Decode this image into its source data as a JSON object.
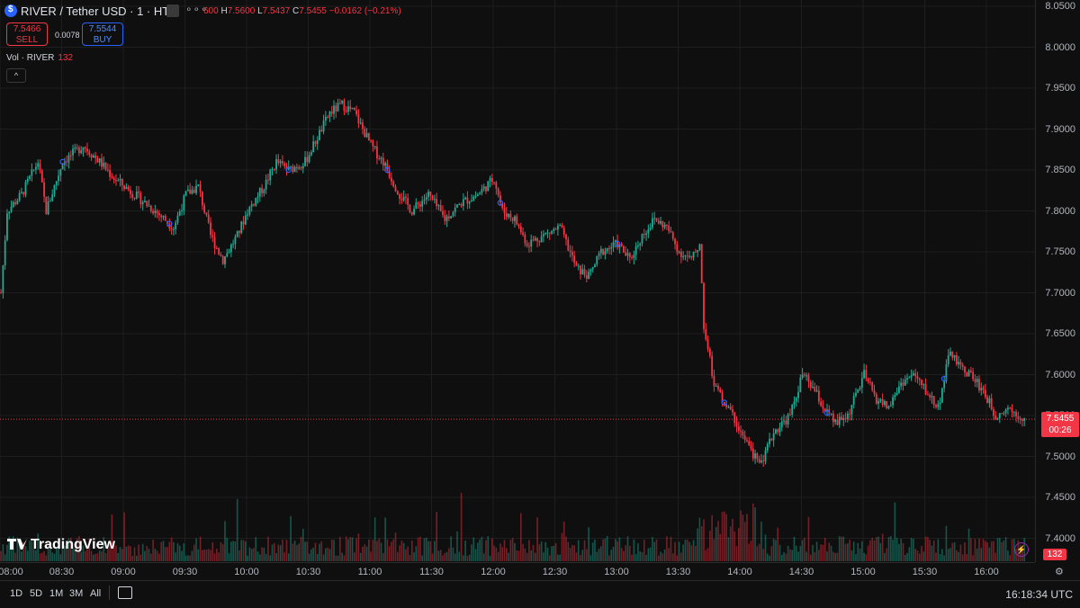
{
  "header": {
    "title": "RIVER / Tether USD · 1 · HTX",
    "more": "∘∘∘",
    "ohlc_open": "600",
    "h_label": "H",
    "h_value": "7.5600",
    "l_label": "L",
    "l_value": "7.5437",
    "c_label": "C",
    "c_value": "7.5455",
    "change": "−0.0162 (−0.21%)"
  },
  "trade": {
    "sell_price": "7.5466",
    "sell_label": "SELL",
    "spread": "0.0078",
    "buy_price": "7.5544",
    "buy_label": "BUY"
  },
  "volume_indicator": {
    "label": "Vol · RIVER",
    "value": "132"
  },
  "collapse": "^",
  "price_axis": [
    "8.0500",
    "8.0000",
    "7.9500",
    "7.9000",
    "7.8500",
    "7.8000",
    "7.7500",
    "7.7000",
    "7.6500",
    "7.6000",
    "7.5500",
    "7.5000",
    "7.4500",
    "7.4000"
  ],
  "time_axis": [
    "08:00",
    "08:30",
    "09:00",
    "09:30",
    "10:00",
    "10:30",
    "11:00",
    "11:30",
    "12:00",
    "12:30",
    "13:00",
    "13:30",
    "14:00",
    "14:30",
    "15:00",
    "15:30",
    "16:00"
  ],
  "last_price": {
    "price": "7.5455",
    "countdown": "00:26"
  },
  "volume_tag": "132",
  "logo": "TradingView",
  "bottom_bar": {
    "ranges": [
      "1D",
      "5D",
      "1M",
      "3M",
      "All"
    ],
    "clock": "16:18:34 UTC"
  },
  "colors": {
    "up": "#22ab94",
    "down": "#f23645",
    "background": "#0f0f0f",
    "grid": "#1e1e1e"
  },
  "chart_data": {
    "type": "candlestick",
    "x_range": [
      "08:00",
      "16:18"
    ],
    "ylim": [
      7.37,
      8.055
    ],
    "anchors": [
      [
        "08:00",
        7.7
      ],
      [
        "08:03",
        7.8
      ],
      [
        "08:10",
        7.82
      ],
      [
        "08:18",
        7.86
      ],
      [
        "08:22",
        7.8
      ],
      [
        "08:30",
        7.86
      ],
      [
        "08:40",
        7.88
      ],
      [
        "08:48",
        7.86
      ],
      [
        "08:55",
        7.84
      ],
      [
        "09:05",
        7.82
      ],
      [
        "09:15",
        7.8
      ],
      [
        "09:24",
        7.78
      ],
      [
        "09:30",
        7.82
      ],
      [
        "09:36",
        7.83
      ],
      [
        "09:42",
        7.77
      ],
      [
        "09:48",
        7.74
      ],
      [
        "09:55",
        7.77
      ],
      [
        "10:00",
        7.8
      ],
      [
        "10:08",
        7.83
      ],
      [
        "10:14",
        7.86
      ],
      [
        "10:20",
        7.85
      ],
      [
        "10:28",
        7.86
      ],
      [
        "10:34",
        7.89
      ],
      [
        "10:40",
        7.92
      ],
      [
        "10:46",
        7.93
      ],
      [
        "10:52",
        7.92
      ],
      [
        "11:00",
        7.88
      ],
      [
        "11:06",
        7.86
      ],
      [
        "11:14",
        7.82
      ],
      [
        "11:20",
        7.8
      ],
      [
        "11:28",
        7.82
      ],
      [
        "11:36",
        7.79
      ],
      [
        "11:44",
        7.81
      ],
      [
        "11:52",
        7.82
      ],
      [
        "12:00",
        7.84
      ],
      [
        "12:04",
        7.8
      ],
      [
        "12:10",
        7.79
      ],
      [
        "12:16",
        7.76
      ],
      [
        "12:24",
        7.77
      ],
      [
        "12:32",
        7.78
      ],
      [
        "12:40",
        7.73
      ],
      [
        "12:46",
        7.72
      ],
      [
        "12:52",
        7.75
      ],
      [
        "13:00",
        7.76
      ],
      [
        "13:06",
        7.74
      ],
      [
        "13:12",
        7.77
      ],
      [
        "13:18",
        7.79
      ],
      [
        "13:24",
        7.78
      ],
      [
        "13:30",
        7.75
      ],
      [
        "13:36",
        7.74
      ],
      [
        "13:40",
        7.76
      ],
      [
        "13:42",
        7.66
      ],
      [
        "13:47",
        7.59
      ],
      [
        "13:51",
        7.57
      ],
      [
        "13:56",
        7.55
      ],
      [
        "14:04",
        7.51
      ],
      [
        "14:10",
        7.49
      ],
      [
        "14:16",
        7.53
      ],
      [
        "14:24",
        7.55
      ],
      [
        "14:30",
        7.6
      ],
      [
        "14:36",
        7.58
      ],
      [
        "14:40",
        7.56
      ],
      [
        "14:46",
        7.54
      ],
      [
        "14:52",
        7.55
      ],
      [
        "15:00",
        7.6
      ],
      [
        "15:06",
        7.57
      ],
      [
        "15:12",
        7.56
      ],
      [
        "15:18",
        7.59
      ],
      [
        "15:24",
        7.6
      ],
      [
        "15:30",
        7.58
      ],
      [
        "15:36",
        7.56
      ],
      [
        "15:42",
        7.63
      ],
      [
        "15:46",
        7.61
      ],
      [
        "15:52",
        7.6
      ],
      [
        "15:58",
        7.58
      ],
      [
        "16:04",
        7.55
      ],
      [
        "16:10",
        7.56
      ],
      [
        "16:18",
        7.5455
      ]
    ],
    "markers": [
      "08:30",
      "09:22",
      "10:20",
      "11:08",
      "12:03",
      "13:00",
      "13:52",
      "14:42",
      "15:39"
    ]
  }
}
